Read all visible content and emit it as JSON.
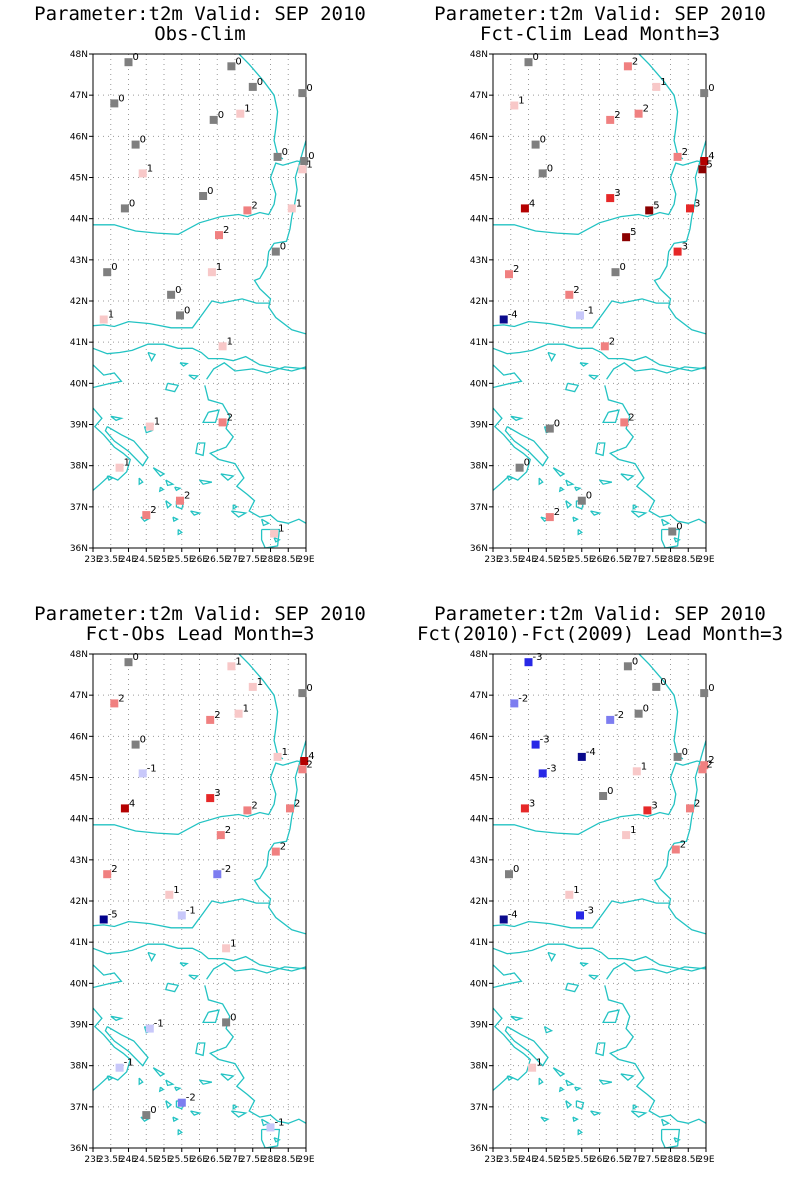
{
  "colors": {
    "coast": "#23c3c3",
    "grid": "#9a9a9a",
    "value_colors": {
      "-5": "#00008b",
      "-4": "#0a0a8c",
      "-3": "#2828e6",
      "-2": "#7d7df0",
      "-1": "#c8c8fa",
      "0": "#7f7f7f",
      "1": "#f8c8c8",
      "2": "#f08080",
      "3": "#e62828",
      "4": "#b40000",
      "5": "#8b0000"
    }
  },
  "axes": {
    "lat_labels": [
      "48N",
      "47N",
      "46N",
      "45N",
      "44N",
      "43N",
      "42N",
      "41N",
      "40N",
      "39N",
      "38N",
      "37N",
      "36N"
    ],
    "lon_labels": [
      "23E",
      "23.5E",
      "24E",
      "24.5E",
      "25E",
      "25.5E",
      "26E",
      "26.5E",
      "27E",
      "27.5E",
      "28E",
      "28.5E",
      "29E"
    ],
    "lat_range": [
      36,
      48
    ],
    "lon_range": [
      23,
      29
    ]
  },
  "panels": [
    {
      "title_line1": "Parameter:t2m Valid: SEP 2010",
      "title_line2": "Obs-Clim",
      "stations": [
        {
          "lat": 47.8,
          "lon": 24.0,
          "v": 0
        },
        {
          "lat": 46.8,
          "lon": 23.6,
          "v": 0
        },
        {
          "lat": 47.7,
          "lon": 26.9,
          "v": 0
        },
        {
          "lat": 47.2,
          "lon": 27.5,
          "v": 0
        },
        {
          "lat": 47.05,
          "lon": 28.9,
          "v": 0
        },
        {
          "lat": 46.55,
          "lon": 27.15,
          "v": 1
        },
        {
          "lat": 46.4,
          "lon": 26.4,
          "v": 0
        },
        {
          "lat": 45.8,
          "lon": 24.2,
          "v": 0
        },
        {
          "lat": 45.5,
          "lon": 28.2,
          "v": 0
        },
        {
          "lat": 45.4,
          "lon": 28.95,
          "v": 0
        },
        {
          "lat": 45.2,
          "lon": 28.9,
          "v": 1
        },
        {
          "lat": 45.1,
          "lon": 24.4,
          "v": 1
        },
        {
          "lat": 44.55,
          "lon": 26.1,
          "v": 0
        },
        {
          "lat": 44.25,
          "lon": 23.9,
          "v": 0
        },
        {
          "lat": 44.2,
          "lon": 27.35,
          "v": 2
        },
        {
          "lat": 44.25,
          "lon": 28.6,
          "v": 1
        },
        {
          "lat": 43.6,
          "lon": 26.55,
          "v": 2
        },
        {
          "lat": 43.2,
          "lon": 28.15,
          "v": 0
        },
        {
          "lat": 42.7,
          "lon": 23.4,
          "v": 0
        },
        {
          "lat": 42.7,
          "lon": 26.35,
          "v": 1
        },
        {
          "lat": 42.15,
          "lon": 25.2,
          "v": 0
        },
        {
          "lat": 41.65,
          "lon": 25.45,
          "v": 0
        },
        {
          "lat": 41.55,
          "lon": 23.3,
          "v": 1
        },
        {
          "lat": 40.9,
          "lon": 26.65,
          "v": 1
        },
        {
          "lat": 39.05,
          "lon": 26.65,
          "v": 2
        },
        {
          "lat": 38.95,
          "lon": 24.6,
          "v": 1
        },
        {
          "lat": 37.95,
          "lon": 23.75,
          "v": 1
        },
        {
          "lat": 37.15,
          "lon": 25.45,
          "v": 2
        },
        {
          "lat": 36.8,
          "lon": 24.5,
          "v": 2
        },
        {
          "lat": 36.35,
          "lon": 28.1,
          "v": 1
        }
      ]
    },
    {
      "title_line1": "Parameter:t2m Valid: SEP 2010",
      "title_line2": "Fct-Clim Lead Month=3",
      "stations": [
        {
          "lat": 47.8,
          "lon": 24.0,
          "v": 0
        },
        {
          "lat": 47.7,
          "lon": 26.8,
          "v": 2
        },
        {
          "lat": 47.2,
          "lon": 27.6,
          "v": 1
        },
        {
          "lat": 47.05,
          "lon": 28.95,
          "v": 0
        },
        {
          "lat": 46.75,
          "lon": 23.6,
          "v": 1
        },
        {
          "lat": 46.55,
          "lon": 27.1,
          "v": 2
        },
        {
          "lat": 46.4,
          "lon": 26.3,
          "v": 2
        },
        {
          "lat": 45.8,
          "lon": 24.2,
          "v": 0
        },
        {
          "lat": 45.5,
          "lon": 28.2,
          "v": 2
        },
        {
          "lat": 45.4,
          "lon": 28.95,
          "v": 4
        },
        {
          "lat": 45.2,
          "lon": 28.9,
          "v": 5
        },
        {
          "lat": 45.1,
          "lon": 24.4,
          "v": 0
        },
        {
          "lat": 44.5,
          "lon": 26.3,
          "v": 3
        },
        {
          "lat": 44.25,
          "lon": 23.9,
          "v": 4
        },
        {
          "lat": 44.2,
          "lon": 27.4,
          "v": 5
        },
        {
          "lat": 44.25,
          "lon": 28.55,
          "v": 3
        },
        {
          "lat": 43.55,
          "lon": 26.75,
          "v": 5
        },
        {
          "lat": 43.2,
          "lon": 28.2,
          "v": 3
        },
        {
          "lat": 42.65,
          "lon": 23.45,
          "v": 2
        },
        {
          "lat": 42.7,
          "lon": 26.45,
          "v": 0
        },
        {
          "lat": 42.15,
          "lon": 25.15,
          "v": 2
        },
        {
          "lat": 41.65,
          "lon": 25.45,
          "v": -1
        },
        {
          "lat": 41.55,
          "lon": 23.3,
          "v": -4
        },
        {
          "lat": 40.9,
          "lon": 26.15,
          "v": 2
        },
        {
          "lat": 39.05,
          "lon": 26.7,
          "v": 2
        },
        {
          "lat": 38.9,
          "lon": 24.6,
          "v": 0
        },
        {
          "lat": 37.95,
          "lon": 23.75,
          "v": 0
        },
        {
          "lat": 37.15,
          "lon": 25.5,
          "v": 0
        },
        {
          "lat": 36.75,
          "lon": 24.6,
          "v": 2
        },
        {
          "lat": 36.4,
          "lon": 28.05,
          "v": 0
        }
      ]
    },
    {
      "title_line1": "Parameter:t2m Valid: SEP 2010",
      "title_line2": "Fct-Obs Lead Month=3",
      "stations": [
        {
          "lat": 47.8,
          "lon": 24.0,
          "v": 0
        },
        {
          "lat": 47.7,
          "lon": 26.9,
          "v": 1
        },
        {
          "lat": 47.2,
          "lon": 27.5,
          "v": 1
        },
        {
          "lat": 47.05,
          "lon": 28.9,
          "v": 0
        },
        {
          "lat": 46.8,
          "lon": 23.6,
          "v": 2
        },
        {
          "lat": 46.55,
          "lon": 27.1,
          "v": 1
        },
        {
          "lat": 46.4,
          "lon": 26.3,
          "v": 2
        },
        {
          "lat": 45.8,
          "lon": 24.2,
          "v": 0
        },
        {
          "lat": 45.5,
          "lon": 28.2,
          "v": 1
        },
        {
          "lat": 45.4,
          "lon": 28.95,
          "v": 4
        },
        {
          "lat": 45.2,
          "lon": 28.9,
          "v": 2
        },
        {
          "lat": 45.1,
          "lon": 24.4,
          "v": -1
        },
        {
          "lat": 44.5,
          "lon": 26.3,
          "v": 3
        },
        {
          "lat": 44.25,
          "lon": 23.9,
          "v": 4
        },
        {
          "lat": 44.2,
          "lon": 27.35,
          "v": 2
        },
        {
          "lat": 44.25,
          "lon": 28.55,
          "v": 2
        },
        {
          "lat": 43.6,
          "lon": 26.6,
          "v": 2
        },
        {
          "lat": 43.2,
          "lon": 28.15,
          "v": 2
        },
        {
          "lat": 42.65,
          "lon": 23.4,
          "v": 2
        },
        {
          "lat": 42.65,
          "lon": 26.5,
          "v": -2
        },
        {
          "lat": 42.15,
          "lon": 25.15,
          "v": 1
        },
        {
          "lat": 41.65,
          "lon": 25.5,
          "v": -1
        },
        {
          "lat": 41.55,
          "lon": 23.3,
          "v": -5
        },
        {
          "lat": 40.85,
          "lon": 26.75,
          "v": 1
        },
        {
          "lat": 39.05,
          "lon": 26.75,
          "v": 0
        },
        {
          "lat": 38.9,
          "lon": 24.6,
          "v": -1
        },
        {
          "lat": 37.95,
          "lon": 23.75,
          "v": -1
        },
        {
          "lat": 37.1,
          "lon": 25.5,
          "v": -2
        },
        {
          "lat": 36.8,
          "lon": 24.5,
          "v": 0
        },
        {
          "lat": 36.5,
          "lon": 28.0,
          "v": -1
        }
      ]
    },
    {
      "title_line1": "Parameter:t2m Valid: SEP 2010",
      "title_line2": "Fct(2010)-Fct(2009) Lead Month=3",
      "stations": [
        {
          "lat": 47.8,
          "lon": 24.0,
          "v": -3
        },
        {
          "lat": 47.7,
          "lon": 26.8,
          "v": 0
        },
        {
          "lat": 47.2,
          "lon": 27.6,
          "v": 0
        },
        {
          "lat": 47.05,
          "lon": 28.95,
          "v": 0
        },
        {
          "lat": 46.8,
          "lon": 23.6,
          "v": -2
        },
        {
          "lat": 46.55,
          "lon": 27.1,
          "v": 0
        },
        {
          "lat": 46.4,
          "lon": 26.3,
          "v": -2
        },
        {
          "lat": 45.8,
          "lon": 24.2,
          "v": -3
        },
        {
          "lat": 45.5,
          "lon": 25.5,
          "v": -4
        },
        {
          "lat": 45.5,
          "lon": 28.2,
          "v": 0
        },
        {
          "lat": 45.3,
          "lon": 28.95,
          "v": 2
        },
        {
          "lat": 45.2,
          "lon": 28.9,
          "v": 2
        },
        {
          "lat": 45.1,
          "lon": 24.4,
          "v": -3
        },
        {
          "lat": 45.15,
          "lon": 27.05,
          "v": 1
        },
        {
          "lat": 44.55,
          "lon": 26.1,
          "v": 0
        },
        {
          "lat": 44.25,
          "lon": 23.9,
          "v": 3
        },
        {
          "lat": 44.2,
          "lon": 27.35,
          "v": 3
        },
        {
          "lat": 44.25,
          "lon": 28.55,
          "v": 2
        },
        {
          "lat": 43.6,
          "lon": 26.75,
          "v": 1
        },
        {
          "lat": 43.25,
          "lon": 28.15,
          "v": 2
        },
        {
          "lat": 42.65,
          "lon": 23.45,
          "v": 0
        },
        {
          "lat": 42.15,
          "lon": 25.15,
          "v": 1
        },
        {
          "lat": 41.65,
          "lon": 25.45,
          "v": -3
        },
        {
          "lat": 41.55,
          "lon": 23.3,
          "v": -4
        },
        {
          "lat": 37.95,
          "lon": 24.1,
          "v": 1
        }
      ]
    }
  ]
}
